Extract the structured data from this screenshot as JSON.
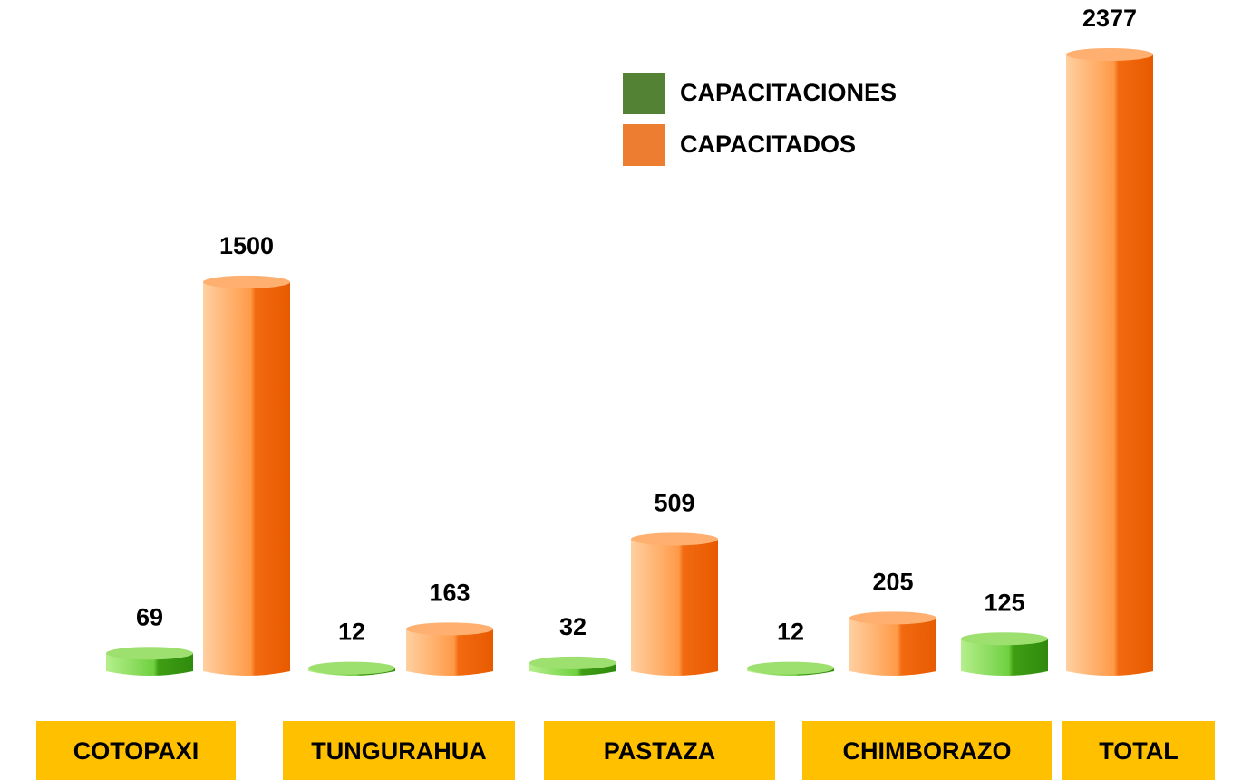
{
  "chart_data": {
    "type": "bar",
    "categories": [
      "COTOPAXI",
      "TUNGURAHUA",
      "PASTAZA",
      "CHIMBORAZO",
      "TOTAL"
    ],
    "series": [
      {
        "name": "CAPACITACIONES",
        "color": "#4fae1e",
        "values": [
          69,
          12,
          32,
          12,
          125
        ]
      },
      {
        "name": "CAPACITADOS",
        "color": "#f26a10",
        "values": [
          1500,
          163,
          509,
          205,
          2377
        ]
      }
    ],
    "legend": "top-right"
  }
}
